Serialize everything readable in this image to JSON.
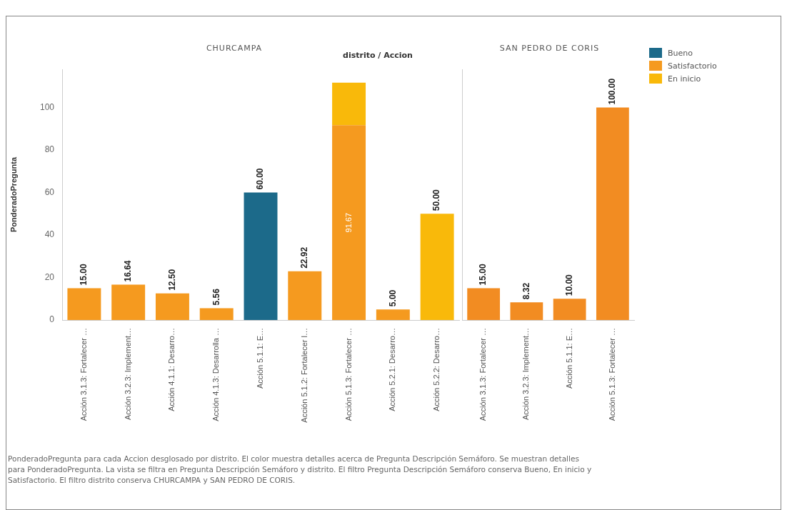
{
  "chart_data": [
    {
      "type": "bar",
      "title": "CHURCAMPA",
      "ylabel": "PonderadoPregunta",
      "stacked": true,
      "grid": false,
      "ylim": [
        0,
        118
      ],
      "yticks": [
        0,
        20,
        40,
        60,
        80,
        100
      ],
      "annotations": [
        "distrito / Accion",
        "PonderadoPregunta para cada Accion desglosado por distrito.  El color muestra detalles acerca de Pregunta Descripción Semáforo.  Se muestran detalles para PonderadoPregunta. La vista se filtra en Pregunta Descripción Semáforo y distrito. El filtro Pregunta Descripción Semáforo conserva Bueno, En inicio y Satisfactorio. El filtro distrito conserva CHURCAMPA y SAN PEDRO DE CORIS."
      ],
      "legend": "right",
      "categories": [
        "Acción 3.1.3: Fortalecer …",
        "Acción 3.2.3: Implement…",
        "Acción 4.1.1: Desarro…",
        "Acción 4.1.3: Desarrolla …",
        "Acción 5.1.1: E…",
        "Acción 5.1.2: Fortalecer l…",
        "Acción 5.1.3: Fortalecer …",
        "Acción 5.2.1: Desarro…",
        "Acción 5.2.2: Desarro…"
      ],
      "series": [
        {
          "name": "Bueno",
          "color": "#1c6a8a",
          "values": [
            null,
            null,
            null,
            null,
            60,
            null,
            null,
            null,
            null
          ],
          "value_labels": [
            null,
            null,
            null,
            null,
            "60.00",
            null,
            null,
            null,
            null
          ]
        },
        {
          "name": "Satisfactorio",
          "color": "#f59a1f",
          "values": [
            15,
            16.64,
            12.5,
            5.56,
            null,
            22.92,
            91.67,
            5,
            null
          ],
          "value_labels": [
            "15.00",
            "16.64",
            "12.50",
            "5.56",
            null,
            "22.92",
            "91.67",
            "5.00",
            null
          ]
        },
        {
          "name": "En inicio",
          "color": "#f9b90a",
          "values": [
            null,
            null,
            null,
            null,
            null,
            null,
            20,
            null,
            50
          ],
          "value_labels": [
            null,
            null,
            null,
            null,
            null,
            null,
            null,
            null,
            "50.00"
          ]
        }
      ]
    },
    {
      "type": "bar",
      "title": "SAN PEDRO DE CORIS",
      "stacked": true,
      "grid": false,
      "ylim": [
        0,
        118
      ],
      "yticks": [
        0,
        20,
        40,
        60,
        80,
        100
      ],
      "tick_labels": "x",
      "categories": [
        "Acción 3.1.3: Fortalecer …",
        "Acción 3.2.3: Implement…",
        "Acción 5.1.1: E…",
        "Acción 5.1.3: Fortalecer …"
      ],
      "series": [
        {
          "color": "#f28c22",
          "values": [
            15,
            8.32,
            10,
            100
          ],
          "value_labels": [
            "15.00",
            "8.32",
            "10.00",
            "100.00"
          ]
        }
      ]
    }
  ]
}
